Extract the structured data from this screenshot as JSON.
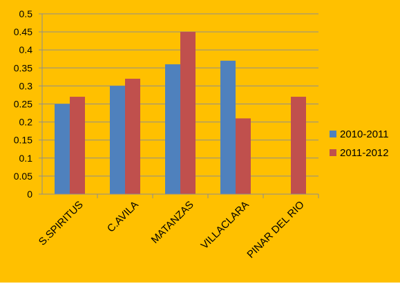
{
  "chart_data": {
    "type": "bar",
    "categories": [
      "S.SPIRITUS",
      "C.AVILA",
      "MATANZAS",
      "VILLACLARA",
      "PINAR DEL RIO"
    ],
    "series": [
      {
        "name": "2010-2011",
        "values": [
          0.25,
          0.3,
          0.36,
          0.37,
          null
        ]
      },
      {
        "name": "2011-2012",
        "values": [
          0.27,
          0.32,
          0.45,
          0.21,
          0.27
        ]
      }
    ],
    "ylim": [
      0,
      0.5
    ],
    "yticks": [
      "0",
      "0.05",
      "0.1",
      "0.15",
      "0.2",
      "0.25",
      "0.3",
      "0.35",
      "0.4",
      "0.45",
      "0.5"
    ],
    "grid": true,
    "legend_position": "right",
    "colors": {
      "background": "#FFC000",
      "series": [
        "#4F81BD",
        "#C0504D"
      ],
      "grid": "#8E8E8E",
      "axis": "#8E8E8E"
    }
  }
}
